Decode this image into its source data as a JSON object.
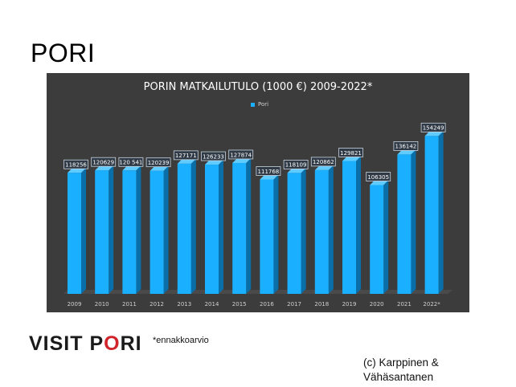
{
  "page": {
    "title": "PORI"
  },
  "chart_data": {
    "type": "bar",
    "title": "PORIN MATKAILUTULO (1000 €) 2009-2022*",
    "legend": {
      "entries": [
        "Pori"
      ],
      "placement": "top-center"
    },
    "categories": [
      "2009",
      "2010",
      "2011",
      "2012",
      "2013",
      "2014",
      "2015",
      "2016",
      "2017",
      "2018",
      "2019",
      "2020",
      "2021",
      "2022*"
    ],
    "series": [
      {
        "name": "Pori",
        "values": [
          118256,
          120629,
          120541,
          120239,
          127171,
          126233,
          127874,
          111768,
          118109,
          120862,
          129821,
          106305,
          136142,
          154249
        ],
        "data_labels": [
          "118256",
          "120629",
          "120 541",
          "120239",
          "127171",
          "126233",
          "127874",
          "111768",
          "118109",
          "120862",
          "129821",
          "106305",
          "136142",
          "154249"
        ]
      }
    ],
    "ylim": [
      0,
      160000
    ],
    "grid": false,
    "colors": {
      "bar": "#1ab0ff",
      "bar_side": "#0a6fa8",
      "background": "#3c3c3c",
      "label_bg": "#2f3a46"
    }
  },
  "footer": {
    "logo_text": "VISIT PORI",
    "logo_crown_icon": "crown-icon",
    "footnote": "*ennakkoarvio",
    "credit": "(c) Karppinen &\nVähäsantanen"
  }
}
